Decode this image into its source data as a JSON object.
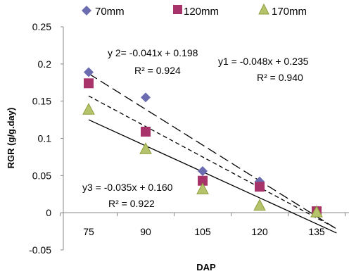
{
  "chart_data": {
    "type": "scatter",
    "title": "",
    "xlabel": "DAP",
    "ylabel": "RGR (g/g.day)",
    "categories": [
      "75",
      "90",
      "105",
      "120",
      "135"
    ],
    "x": [
      75,
      90,
      105,
      120,
      135
    ],
    "ylim": [
      -0.05,
      0.25
    ],
    "yticks": [
      "-0.05",
      "0",
      "0.05",
      "0.1",
      "0.15",
      "0.2",
      "0.25"
    ],
    "ytick_values": [
      -0.05,
      0,
      0.05,
      0.1,
      0.15,
      0.2,
      0.25
    ],
    "grid": false,
    "legend_position": "top",
    "series": [
      {
        "name": "70mm",
        "marker": "diamond",
        "color": "#6B6BB0",
        "values": [
          0.189,
          0.155,
          0.056,
          0.042,
          0.003
        ],
        "trendline": {
          "slope": -0.048,
          "intercept": 0.235,
          "dash": "long-dash"
        }
      },
      {
        "name": "120mm",
        "marker": "square",
        "color": "#A8336A",
        "values": [
          0.174,
          0.109,
          0.043,
          0.035,
          0.002
        ],
        "trendline": {
          "slope": -0.041,
          "intercept": 0.198,
          "dash": "short-dash"
        }
      },
      {
        "name": "170mm",
        "marker": "triangle",
        "color": "#B5C46A",
        "stroke": "#8E9D3C",
        "values": [
          0.139,
          0.086,
          0.032,
          0.01,
          0.001
        ],
        "trendline": {
          "slope": -0.035,
          "intercept": 0.16,
          "dash": "solid"
        }
      }
    ],
    "annotations": [
      {
        "line1": "y 2= -0.041x + 0.198",
        "line2": "R² = 0.924"
      },
      {
        "line1": "y1 = -0.048x + 0.235",
        "line2": "R² = 0.940"
      },
      {
        "line1": "y3 = -0.035x + 0.160",
        "line2": "R² = 0.922"
      }
    ]
  }
}
